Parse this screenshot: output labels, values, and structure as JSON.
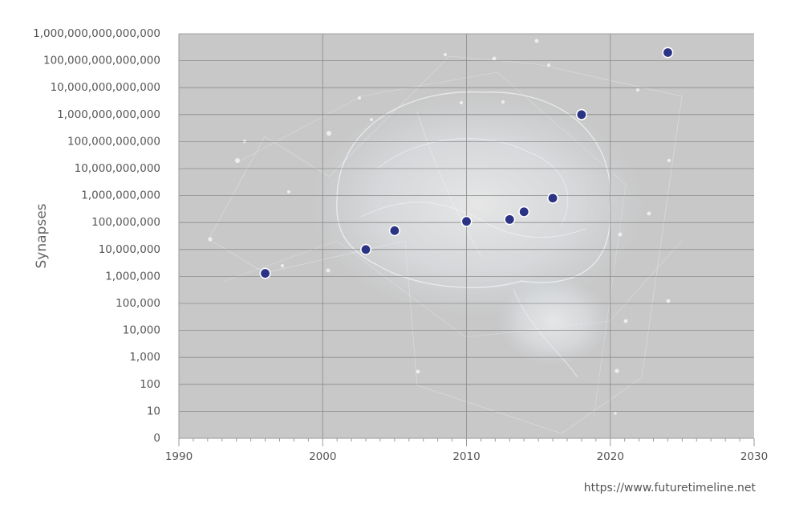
{
  "chart_data": {
    "type": "scatter",
    "title": "",
    "xlabel": "",
    "ylabel": "Synapses",
    "xlim": [
      1990,
      2030
    ],
    "x_ticks": [
      "1990",
      "2000",
      "2010",
      "2020",
      "2030"
    ],
    "y_scale": "log",
    "y_ticks": [
      "0",
      "10",
      "100",
      "1,000",
      "10,000",
      "100,000",
      "1,000,000",
      "10,000,000",
      "100,000,000",
      "1,000,000,000",
      "10,000,000,000",
      "100,000,000,000",
      "1,000,000,000,000",
      "10,000,000,000,000",
      "100,000,000,000,000",
      "1,000,000,000,000,000"
    ],
    "grid": true,
    "points": [
      {
        "x": 1996,
        "y": 1300000
      },
      {
        "x": 2003,
        "y": 10000000
      },
      {
        "x": 2005,
        "y": 50000000
      },
      {
        "x": 2010,
        "y": 110000000
      },
      {
        "x": 2013,
        "y": 130000000
      },
      {
        "x": 2014,
        "y": 250000000
      },
      {
        "x": 2016,
        "y": 800000000
      },
      {
        "x": 2018,
        "y": 1000000000000
      },
      {
        "x": 2024,
        "y": 200000000000000
      }
    ],
    "colors": {
      "plot_bg": "#c8c8c8",
      "point": "#2b3385",
      "grid": "#8c8c8c",
      "axis": "#9a9a9a"
    }
  },
  "footer": {
    "source": "https://www.futuretimeline.net"
  }
}
